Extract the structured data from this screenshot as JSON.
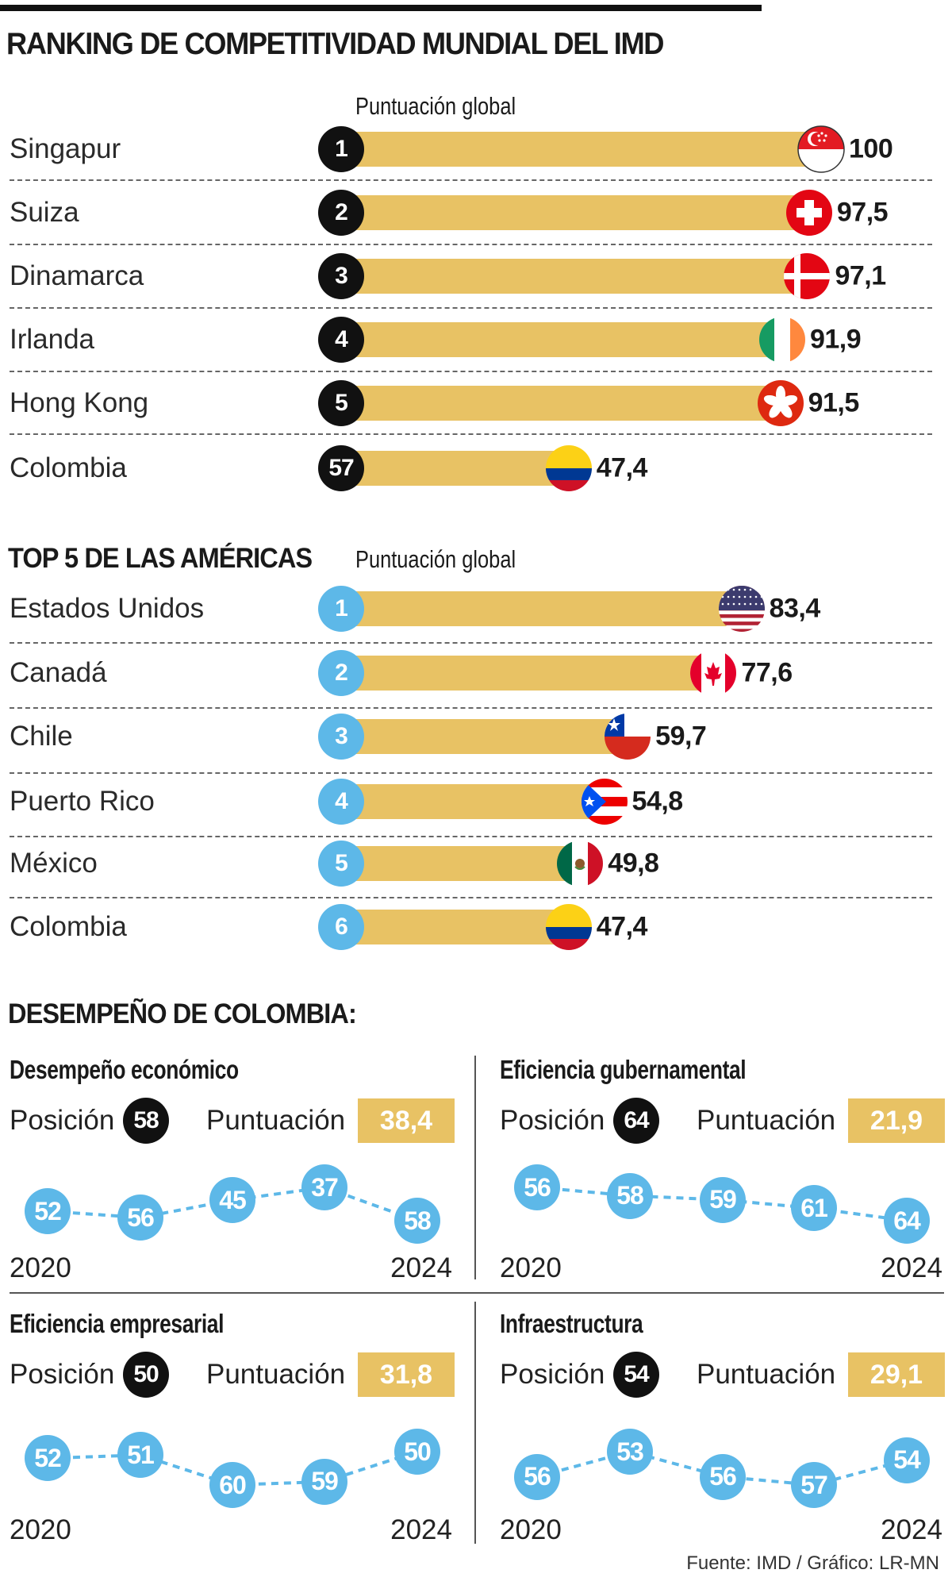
{
  "title": "RANKING DE COMPETITIVIDAD MUNDIAL DEL IMD",
  "americas_title": "TOP 5 DE LAS AMÉRICAS",
  "colombia_title": "DESEMPEÑO DE COLOMBIA:",
  "source": "Fuente: IMD / Gráfico: LR-MN",
  "colors": {
    "bar": "#e8c264",
    "rank_world": "#111111",
    "rank_americas": "#5db8e8",
    "dot": "#5db8e8"
  },
  "chart_data": [
    {
      "id": "world",
      "type": "bar",
      "orientation": "horizontal",
      "value_label": "Puntuación global",
      "xlim": [
        0,
        100
      ],
      "rows": [
        {
          "country": "Singapur",
          "rank": "1",
          "value": 100,
          "label": "100",
          "flag": "singapore-flag-icon"
        },
        {
          "country": "Suiza",
          "rank": "2",
          "value": 97.5,
          "label": "97,5",
          "flag": "switzerland-flag-icon"
        },
        {
          "country": "Dinamarca",
          "rank": "3",
          "value": 97.1,
          "label": "97,1",
          "flag": "denmark-flag-icon"
        },
        {
          "country": "Irlanda",
          "rank": "4",
          "value": 91.9,
          "label": "91,9",
          "flag": "ireland-flag-icon"
        },
        {
          "country": "Hong Kong",
          "rank": "5",
          "value": 91.5,
          "label": "91,5",
          "flag": "hong-kong-flag-icon"
        },
        {
          "country": "Colombia",
          "rank": "57",
          "value": 47.4,
          "label": "47,4",
          "flag": "colombia-flag-icon"
        }
      ]
    },
    {
      "id": "americas",
      "type": "bar",
      "orientation": "horizontal",
      "value_label": "Puntuación global",
      "xlim": [
        0,
        100
      ],
      "rows": [
        {
          "country": "Estados Unidos",
          "rank": "1",
          "value": 83.4,
          "label": "83,4",
          "flag": "usa-flag-icon"
        },
        {
          "country": "Canadá",
          "rank": "2",
          "value": 77.6,
          "label": "77,6",
          "flag": "canada-flag-icon"
        },
        {
          "country": "Chile",
          "rank": "3",
          "value": 59.7,
          "label": "59,7",
          "flag": "chile-flag-icon"
        },
        {
          "country": "Puerto Rico",
          "rank": "4",
          "value": 54.8,
          "label": "54,8",
          "flag": "puerto-rico-flag-icon"
        },
        {
          "country": "México",
          "rank": "5",
          "value": 49.8,
          "label": "49,8",
          "flag": "mexico-flag-icon"
        },
        {
          "country": "Colombia",
          "rank": "6",
          "value": 47.4,
          "label": "47,4",
          "flag": "colombia-flag-icon"
        }
      ]
    },
    {
      "id": "economic",
      "type": "line",
      "title": "Desempeño económico",
      "position_label": "Posición",
      "position": "58",
      "score_label": "Puntuación",
      "score": "38,4",
      "x": [
        2020,
        2021,
        2022,
        2023,
        2024
      ],
      "x_labels": [
        "2020",
        "2024"
      ],
      "values": [
        52,
        56,
        45,
        37,
        58
      ],
      "y_inverted": true
    },
    {
      "id": "government",
      "type": "line",
      "title": "Eficiencia gubernamental",
      "position_label": "Posición",
      "position": "64",
      "score_label": "Puntuación",
      "score": "21,9",
      "x": [
        2020,
        2021,
        2022,
        2023,
        2024
      ],
      "x_labels": [
        "2020",
        "2024"
      ],
      "values": [
        56,
        58,
        59,
        61,
        64
      ],
      "y_inverted": true
    },
    {
      "id": "business",
      "type": "line",
      "title": "Eficiencia empresarial",
      "position_label": "Posición",
      "position": "50",
      "score_label": "Puntuación",
      "score": "31,8",
      "x": [
        2020,
        2021,
        2022,
        2023,
        2024
      ],
      "x_labels": [
        "2020",
        "2024"
      ],
      "values": [
        52,
        51,
        60,
        59,
        50
      ],
      "y_inverted": true
    },
    {
      "id": "infrastructure",
      "type": "line",
      "title": "Infraestructura",
      "position_label": "Posición",
      "position": "54",
      "score_label": "Puntuación",
      "score": "29,1",
      "x": [
        2020,
        2021,
        2022,
        2023,
        2024
      ],
      "x_labels": [
        "2020",
        "2024"
      ],
      "values": [
        56,
        53,
        56,
        57,
        54
      ],
      "y_inverted": true
    }
  ]
}
